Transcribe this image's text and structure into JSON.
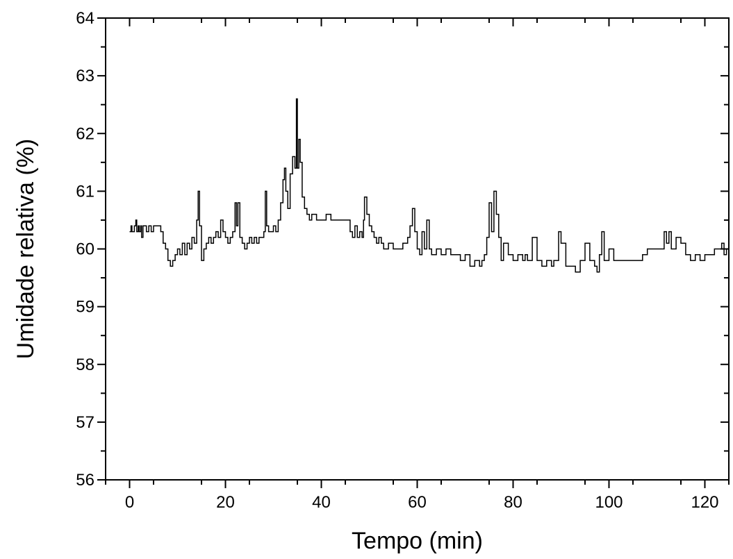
{
  "chart_data": {
    "type": "line",
    "title": "",
    "xlabel": "Tempo (min)",
    "ylabel": "Umidade relativa (%)",
    "xlim": [
      -5,
      125
    ],
    "ylim": [
      56,
      64
    ],
    "xticks": [
      0,
      20,
      40,
      60,
      80,
      100,
      120
    ],
    "xtick_labels": [
      "0",
      "20",
      "40",
      "60",
      "80",
      "100",
      "120"
    ],
    "yticks": [
      56,
      57,
      58,
      59,
      60,
      61,
      62,
      63,
      64
    ],
    "ytick_labels": [
      "56",
      "57",
      "58",
      "59",
      "60",
      "61",
      "62",
      "63",
      "64"
    ],
    "grid": false,
    "legend": false,
    "line_color": "#000000",
    "series": [
      {
        "x": [
          0,
          0.3,
          0.5,
          1,
          1.3,
          1.5,
          1.8,
          2,
          2.3,
          2.5,
          2.8,
          3,
          3.5,
          4,
          4.5,
          5,
          5.5,
          6,
          6.5,
          7,
          7.5,
          8,
          8.5,
          9,
          9.5,
          10,
          10.5,
          11,
          11.5,
          12,
          12.5,
          13,
          13.5,
          14,
          14.3,
          14.6,
          15,
          15.5,
          16,
          16.5,
          17,
          17.5,
          18,
          18.5,
          19,
          19.5,
          20,
          20.5,
          21,
          21.5,
          22,
          22.3,
          22.6,
          23,
          23.5,
          24,
          24.5,
          25,
          25.5,
          26,
          26.5,
          27,
          27.5,
          28,
          28.3,
          28.6,
          29,
          29.5,
          30,
          30.5,
          31,
          31.5,
          32,
          32.3,
          32.6,
          33,
          33.5,
          34,
          34.5,
          34.8,
          35,
          35.3,
          35.6,
          36,
          36.5,
          37,
          37.5,
          38,
          39,
          40,
          41,
          42,
          43,
          44,
          45,
          46,
          46.5,
          47,
          47.5,
          48,
          48.5,
          48.8,
          49,
          49.5,
          50,
          50.5,
          51,
          51.5,
          52,
          52.5,
          53,
          54,
          55,
          56,
          57,
          58,
          58.5,
          59,
          59.5,
          60,
          60.5,
          61,
          61.5,
          62,
          62.5,
          63,
          64,
          65,
          66,
          67,
          68,
          69,
          70,
          71,
          72,
          73,
          73.5,
          74,
          74.5,
          75,
          75.5,
          76,
          76.5,
          77,
          77.5,
          78,
          79,
          80,
          81,
          82,
          82.5,
          83,
          84,
          85,
          86,
          87,
          88,
          88.5,
          89,
          89.5,
          90,
          91,
          92,
          93,
          94,
          94.5,
          95,
          96,
          97,
          97.5,
          98,
          98.5,
          99,
          100,
          101,
          102,
          103,
          104,
          105,
          106,
          107,
          108,
          109,
          110,
          111,
          111.5,
          112,
          112.5,
          113,
          114,
          115,
          116,
          117,
          118,
          119,
          120,
          121,
          122,
          123,
          123.5,
          124,
          124.5,
          125
        ],
        "values": [
          60.3,
          60.4,
          60.3,
          60.4,
          60.5,
          60.3,
          60.4,
          60.3,
          60.4,
          60.2,
          60.4,
          60.4,
          60.3,
          60.4,
          60.3,
          60.4,
          60.4,
          60.4,
          60.3,
          60.1,
          60.0,
          59.8,
          59.7,
          59.8,
          59.9,
          60.0,
          59.9,
          60.1,
          59.9,
          60.1,
          60.0,
          60.2,
          60.1,
          60.5,
          61.0,
          60.4,
          59.8,
          60.0,
          60.1,
          60.2,
          60.1,
          60.2,
          60.3,
          60.2,
          60.5,
          60.3,
          60.2,
          60.1,
          60.2,
          60.3,
          60.8,
          60.4,
          60.8,
          60.2,
          60.1,
          60.0,
          60.1,
          60.2,
          60.1,
          60.2,
          60.1,
          60.2,
          60.2,
          60.3,
          61.0,
          60.4,
          60.3,
          60.3,
          60.4,
          60.3,
          60.5,
          60.8,
          61.2,
          61.4,
          61.0,
          60.7,
          61.3,
          61.6,
          61.4,
          62.6,
          61.4,
          61.9,
          61.5,
          60.9,
          60.7,
          60.6,
          60.5,
          60.6,
          60.5,
          60.5,
          60.6,
          60.5,
          60.5,
          60.5,
          60.5,
          60.3,
          60.2,
          60.4,
          60.2,
          60.3,
          60.2,
          60.5,
          60.9,
          60.6,
          60.4,
          60.3,
          60.2,
          60.1,
          60.2,
          60.1,
          60.0,
          60.1,
          60.0,
          60.0,
          60.1,
          60.2,
          60.4,
          60.7,
          60.3,
          60.0,
          59.9,
          60.3,
          60.0,
          60.5,
          60.0,
          59.9,
          60.0,
          59.9,
          60.0,
          59.9,
          59.9,
          59.8,
          59.9,
          59.7,
          59.8,
          59.7,
          59.8,
          59.9,
          60.2,
          60.8,
          60.3,
          61.0,
          60.6,
          60.2,
          59.8,
          60.1,
          59.9,
          59.8,
          59.9,
          59.8,
          59.9,
          59.8,
          60.2,
          59.8,
          59.7,
          59.8,
          59.7,
          59.8,
          59.8,
          60.3,
          60.1,
          59.7,
          59.7,
          59.6,
          59.8,
          59.8,
          60.1,
          59.8,
          59.7,
          59.6,
          59.9,
          60.3,
          59.8,
          60.0,
          59.8,
          59.8,
          59.8,
          59.8,
          59.8,
          59.8,
          59.9,
          60.0,
          60.0,
          60.0,
          60.0,
          60.3,
          60.1,
          60.3,
          60.0,
          60.2,
          60.1,
          59.9,
          59.8,
          59.9,
          59.8,
          59.9,
          59.9,
          60.0,
          60.0,
          60.1,
          59.9,
          60.0,
          59.8
        ]
      }
    ]
  }
}
